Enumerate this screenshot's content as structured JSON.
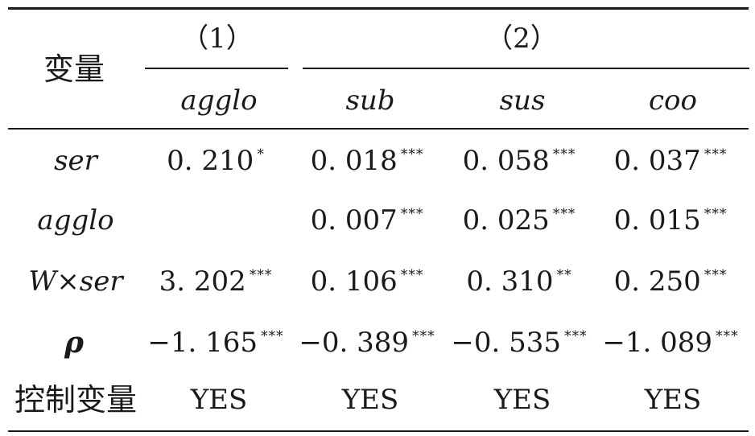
{
  "table": {
    "row_header_label": "变量",
    "group_headers": [
      "（1）",
      "（2）"
    ],
    "columns": [
      "agglo",
      "sub",
      "sus",
      "coo"
    ],
    "rows": [
      {
        "variable": "ser",
        "cells": [
          {
            "value": "0. 210",
            "stars": "*"
          },
          {
            "value": "0. 018",
            "stars": "***"
          },
          {
            "value": "0. 058",
            "stars": "***"
          },
          {
            "value": "0. 037",
            "stars": "***"
          }
        ]
      },
      {
        "variable": "agglo",
        "cells": [
          {
            "value": "",
            "stars": ""
          },
          {
            "value": "0. 007",
            "stars": "***"
          },
          {
            "value": "0. 025",
            "stars": "***"
          },
          {
            "value": "0. 015",
            "stars": "***"
          }
        ]
      },
      {
        "variable": "W×ser",
        "cells": [
          {
            "value": "3. 202",
            "stars": "***"
          },
          {
            "value": "0. 106",
            "stars": "***"
          },
          {
            "value": "0. 310",
            "stars": "**"
          },
          {
            "value": "0. 250",
            "stars": "***"
          }
        ]
      },
      {
        "variable": "ρ",
        "cells": [
          {
            "value": "−1. 165",
            "stars": "***"
          },
          {
            "value": "−0. 389",
            "stars": "***"
          },
          {
            "value": "−0. 535",
            "stars": "***"
          },
          {
            "value": "−1. 089",
            "stars": "***"
          }
        ]
      },
      {
        "variable": "控制变量",
        "cells": [
          {
            "value": "YES",
            "stars": ""
          },
          {
            "value": "YES",
            "stars": ""
          },
          {
            "value": "YES",
            "stars": ""
          },
          {
            "value": "YES",
            "stars": ""
          }
        ]
      }
    ]
  }
}
